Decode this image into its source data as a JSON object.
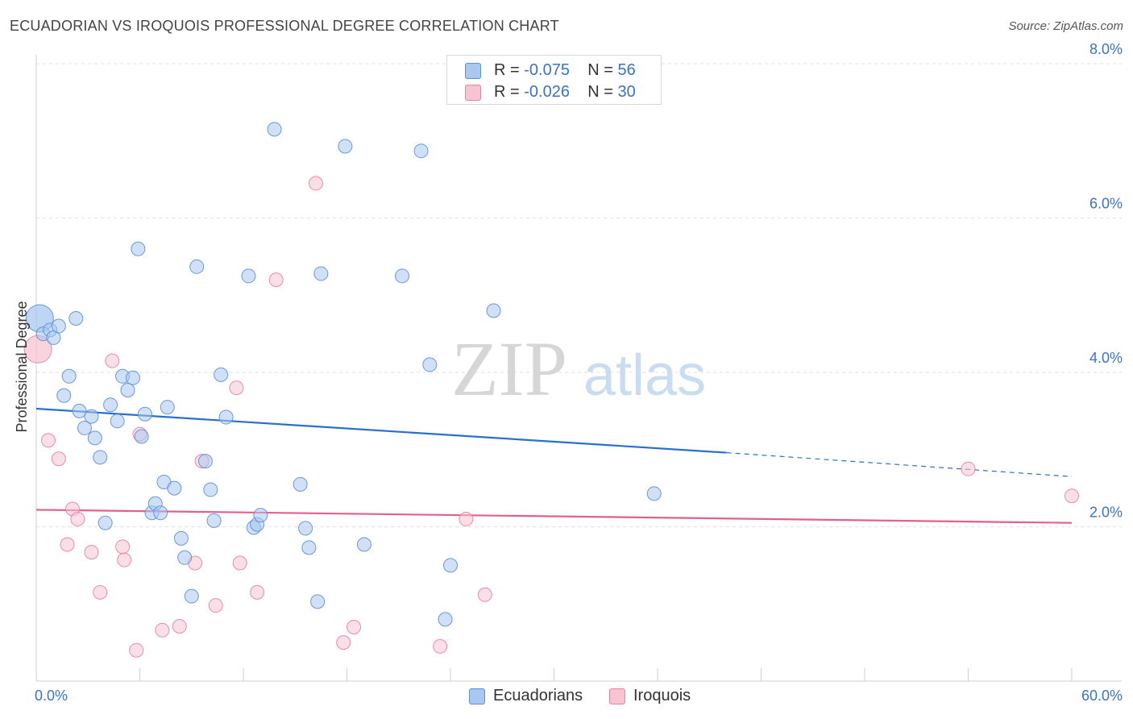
{
  "header": {
    "title": "ECUADORIAN VS IROQUOIS PROFESSIONAL DEGREE CORRELATION CHART",
    "source": "Source: ZipAtlas.com"
  },
  "watermark": {
    "zip": "ZIP",
    "atlas": "atlas"
  },
  "legend_stats": [
    {
      "r_label": "R = ",
      "r_value": "-0.075",
      "n_label": "N = ",
      "n_value": "56",
      "color": "#a9c7f0",
      "border": "#5b8fd8"
    },
    {
      "r_label": "R = ",
      "r_value": "-0.026",
      "n_label": "N = ",
      "n_value": "30",
      "color": "#f7c4d3",
      "border": "#e9819f"
    }
  ],
  "chart_data": {
    "type": "scatter",
    "title": "ECUADORIAN VS IROQUOIS PROFESSIONAL DEGREE CORRELATION CHART",
    "xlabel": "",
    "ylabel": "Professional Degree",
    "xlim": [
      0,
      60
    ],
    "ylim": [
      0,
      8
    ],
    "x_tick_labels": [
      "0.0%",
      "60.0%"
    ],
    "y_ticks": [
      2,
      4,
      6,
      8
    ],
    "y_tick_labels": [
      "2.0%",
      "4.0%",
      "6.0%",
      "8.0%"
    ],
    "grid": "horizontal dashed",
    "series": [
      {
        "name": "Ecuadorians",
        "color": "#a9c7f0",
        "stroke": "#5b8fd8",
        "line_color": "#2a6fcf",
        "trend": {
          "x0": 0,
          "y0": 3.53,
          "x1": 40,
          "y1": 2.96,
          "dash_to_x": 60,
          "dash_to_y": 2.65
        },
        "points": [
          [
            0.2,
            4.7,
            "big"
          ],
          [
            0.4,
            4.5
          ],
          [
            0.8,
            4.55
          ],
          [
            1.0,
            4.45
          ],
          [
            1.3,
            4.6
          ],
          [
            2.3,
            4.7
          ],
          [
            1.6,
            3.7
          ],
          [
            1.9,
            3.95
          ],
          [
            2.5,
            3.5
          ],
          [
            2.8,
            3.28
          ],
          [
            3.2,
            3.43
          ],
          [
            3.4,
            3.15
          ],
          [
            3.7,
            2.9
          ],
          [
            4.0,
            2.05
          ],
          [
            4.3,
            3.58
          ],
          [
            4.7,
            3.37
          ],
          [
            5.0,
            3.95
          ],
          [
            5.3,
            3.77
          ],
          [
            5.6,
            3.93
          ],
          [
            5.9,
            5.6
          ],
          [
            6.1,
            3.17
          ],
          [
            6.3,
            3.46
          ],
          [
            6.7,
            2.18
          ],
          [
            6.9,
            2.3
          ],
          [
            7.2,
            2.18
          ],
          [
            7.4,
            2.58
          ],
          [
            7.6,
            3.55
          ],
          [
            8.0,
            2.5
          ],
          [
            8.4,
            1.85
          ],
          [
            8.6,
            1.6
          ],
          [
            9.0,
            1.1
          ],
          [
            9.3,
            5.37
          ],
          [
            9.8,
            2.85
          ],
          [
            10.1,
            2.48
          ],
          [
            10.3,
            2.08
          ],
          [
            10.7,
            3.97
          ],
          [
            11.0,
            3.42
          ],
          [
            12.3,
            5.25
          ],
          [
            12.6,
            1.99
          ],
          [
            12.8,
            2.03
          ],
          [
            13.0,
            2.15
          ],
          [
            13.8,
            7.15
          ],
          [
            15.3,
            2.55
          ],
          [
            15.6,
            1.98
          ],
          [
            15.8,
            1.73
          ],
          [
            16.3,
            1.03
          ],
          [
            16.5,
            5.28
          ],
          [
            17.9,
            6.93
          ],
          [
            19.0,
            1.77
          ],
          [
            21.2,
            5.25
          ],
          [
            22.3,
            6.87
          ],
          [
            22.8,
            4.1
          ],
          [
            23.7,
            0.8
          ],
          [
            24.0,
            1.5
          ],
          [
            26.5,
            4.8
          ],
          [
            35.8,
            2.43
          ]
        ]
      },
      {
        "name": "Iroquois",
        "color": "#f7c4d3",
        "stroke": "#e9819f",
        "line_color": "#e3608b",
        "trend": {
          "x0": 0,
          "y0": 2.22,
          "x1": 60,
          "y1": 2.05
        },
        "points": [
          [
            0.1,
            4.3,
            "big"
          ],
          [
            0.7,
            3.12
          ],
          [
            1.3,
            2.88
          ],
          [
            1.8,
            1.77
          ],
          [
            2.1,
            2.23
          ],
          [
            2.4,
            2.1
          ],
          [
            3.2,
            1.67
          ],
          [
            3.7,
            1.15
          ],
          [
            4.4,
            4.15
          ],
          [
            5.0,
            1.74
          ],
          [
            5.1,
            1.57
          ],
          [
            5.8,
            0.4
          ],
          [
            6.0,
            3.2
          ],
          [
            7.3,
            0.66
          ],
          [
            8.3,
            0.71
          ],
          [
            9.2,
            1.53
          ],
          [
            9.6,
            2.85
          ],
          [
            10.4,
            0.98
          ],
          [
            11.6,
            3.8
          ],
          [
            11.8,
            1.53
          ],
          [
            12.8,
            1.15
          ],
          [
            13.9,
            5.2
          ],
          [
            16.2,
            6.45
          ],
          [
            17.8,
            0.5
          ],
          [
            18.4,
            0.7
          ],
          [
            23.4,
            0.45
          ],
          [
            24.9,
            2.1
          ],
          [
            26.0,
            1.12
          ],
          [
            54.0,
            2.75
          ],
          [
            60.0,
            2.4
          ]
        ]
      }
    ]
  }
}
